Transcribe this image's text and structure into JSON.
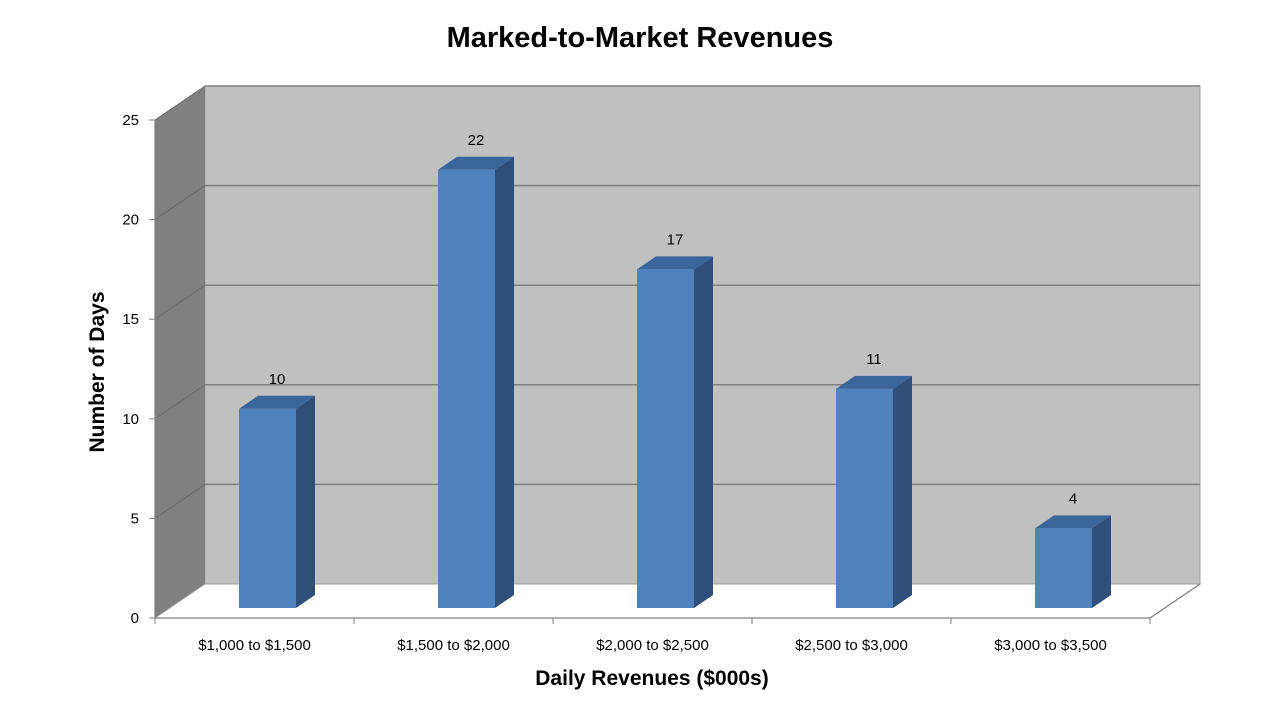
{
  "chart_data": {
    "type": "bar",
    "title": "Marked-to-Market Revenues",
    "xlabel": "Daily Revenues ($000s)",
    "ylabel": "Number of Days",
    "categories": [
      "$1,000 to $1,500",
      "$1,500 to $2,000",
      "$2,000 to $2,500",
      "$2,500 to $3,000",
      "$3,000 to $3,500"
    ],
    "values": [
      10,
      22,
      17,
      11,
      4
    ],
    "data_labels": [
      "10",
      "22",
      "17",
      "11",
      "4"
    ],
    "ylim": [
      0,
      25
    ],
    "yticks": [
      0,
      5,
      10,
      15,
      20,
      25
    ],
    "ytick_labels": [
      "0",
      "5",
      "10",
      "15",
      "20",
      "25"
    ],
    "grid": true,
    "legend": "none",
    "style": "3d-column",
    "colors": {
      "bar_front": "#4f81bd",
      "bar_side": "#2f4f7a",
      "bar_top": "#3a669c",
      "back_wall": "#c0c0c0",
      "side_wall": "#808080",
      "floor": "#ffffff",
      "gridline": "#808080"
    }
  }
}
